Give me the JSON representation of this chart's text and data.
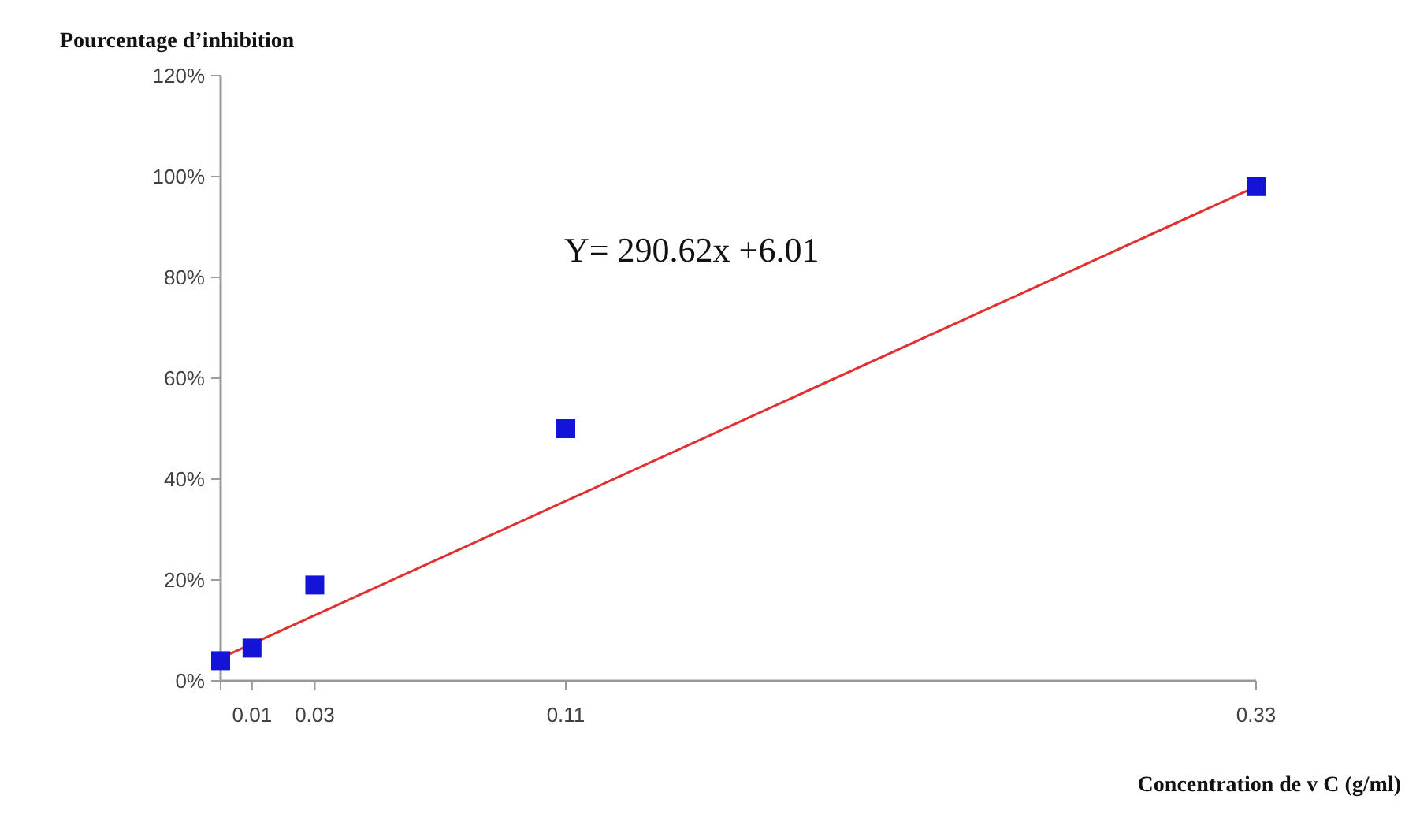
{
  "chart_data": {
    "type": "scatter",
    "ylabel": "Pourcentage d’inhibition",
    "xlabel": "Concentration de v  C (g/ml)",
    "annotations": [
      "Y= 290.62x +6.01"
    ],
    "x": [
      0,
      0.01,
      0.03,
      0.11,
      0.33
    ],
    "series": [
      {
        "color": "#1414d8",
        "marker": "square",
        "values": [
          4,
          6.5,
          19,
          50,
          98
        ]
      },
      {
        "type": "line",
        "color": "#e03030",
        "line_style": "solid",
        "x": [
          0,
          0.33
        ],
        "values": [
          4.5,
          98
        ]
      }
    ],
    "xlim": [
      0,
      0.33
    ],
    "xticks": [
      {
        "value": 0,
        "label": null
      },
      0.01,
      0.03,
      0.11,
      0.33
    ],
    "ylim": [
      0,
      120
    ],
    "yticks": [
      {
        "value": 0,
        "label": "0%"
      },
      {
        "value": 20,
        "label": "20%"
      },
      {
        "value": 40,
        "label": "40%"
      },
      {
        "value": 60,
        "label": "60%"
      },
      {
        "value": 80,
        "label": "80%"
      },
      {
        "value": 100,
        "label": "100%"
      },
      {
        "value": 120,
        "label": "120%"
      }
    ],
    "grid": false
  }
}
